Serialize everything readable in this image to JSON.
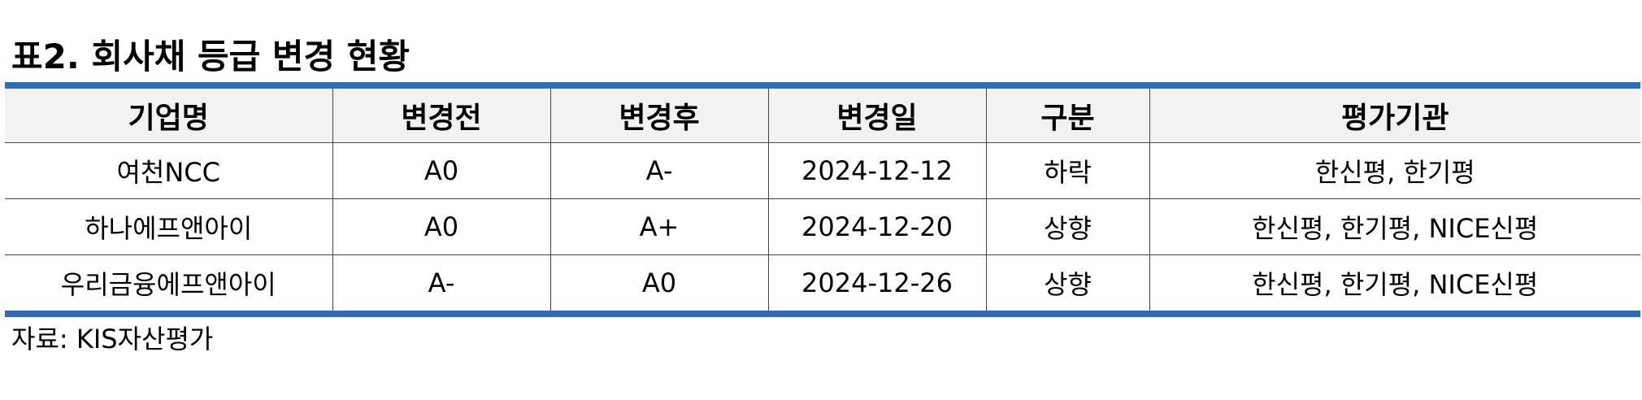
{
  "title": "표2. 회사채 등급 변경 현황",
  "colors": {
    "accent_rule": "#2e6db4",
    "header_bg": "#f2f2f2"
  },
  "table": {
    "headers": [
      "기업명",
      "변경전",
      "변경후",
      "변경일",
      "구분",
      "평가기관"
    ],
    "rows": [
      [
        "여천NCC",
        "A0",
        "A-",
        "2024-12-12",
        "하락",
        "한신평, 한기평"
      ],
      [
        "하나에프앤아이",
        "A0",
        "A+",
        "2024-12-20",
        "상향",
        "한신평, 한기평, NICE신평"
      ],
      [
        "우리금융에프앤아이",
        "A-",
        "A0",
        "2024-12-26",
        "상향",
        "한신평, 한기평, NICE신평"
      ]
    ]
  },
  "source": "자료:  KIS자산평가"
}
